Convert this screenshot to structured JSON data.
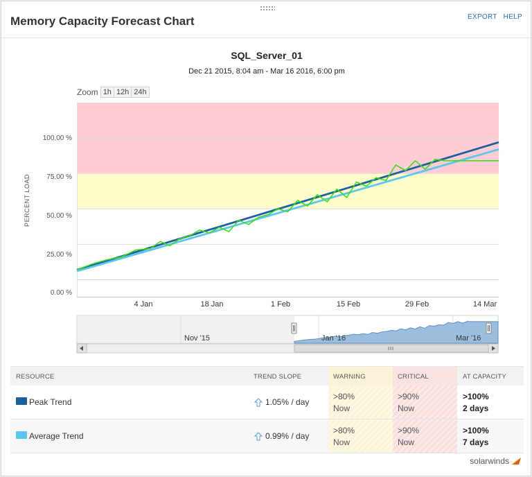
{
  "header": {
    "title": "Memory Capacity Forecast Chart",
    "export_label": "EXPORT",
    "help_label": "HELP"
  },
  "chart": {
    "title": "SQL_Server_01",
    "subtitle": "Dec 21 2015, 8:04 am - Mar 16 2016, 6:00 pm",
    "zoom_label": "Zoom",
    "zoom_options": [
      "1h",
      "12h",
      "24h"
    ],
    "y_axis_title": "PERCENT LOAD",
    "y_ticks": [
      "100.00 %",
      "75.00 %",
      "50.00 %",
      "25.00 %",
      "0.00 %"
    ],
    "x_ticks": [
      "4 Jan",
      "18 Jan",
      "1 Feb",
      "15 Feb",
      "29 Feb",
      "14 Mar"
    ],
    "navigator_labels": [
      "Nov '15",
      "Jan '16",
      "Mar '16"
    ]
  },
  "chart_data": {
    "type": "line",
    "x_range": [
      "2015-12-21",
      "2016-03-16"
    ],
    "ylim": [
      -12,
      125
    ],
    "bands": [
      {
        "from": 80,
        "to": 125,
        "color": "#ffcdd3"
      },
      {
        "from": 75,
        "to": 80,
        "color": "#ffcdd3"
      },
      {
        "from": 50,
        "to": 75,
        "color": "#fffccc"
      }
    ],
    "series": [
      {
        "name": "Peak Trend",
        "color": "#1c5f9e",
        "x": [
          "2015-12-21",
          "2016-03-16"
        ],
        "values": [
          7,
          97
        ]
      },
      {
        "name": "Average Trend",
        "color": "#5bc6ee",
        "x": [
          "2015-12-21",
          "2016-03-16"
        ],
        "values": [
          6,
          92
        ]
      },
      {
        "color": "#3ddc1e",
        "x": [
          "2015-12-21",
          "2015-12-24",
          "2015-12-27",
          "2015-12-30",
          "2016-01-02",
          "2016-01-05",
          "2016-01-07",
          "2016-01-09",
          "2016-01-11",
          "2016-01-13",
          "2016-01-15",
          "2016-01-17",
          "2016-01-19",
          "2016-01-21",
          "2016-01-23",
          "2016-01-25",
          "2016-01-27",
          "2016-01-29",
          "2016-01-31",
          "2016-02-02",
          "2016-02-04",
          "2016-02-06",
          "2016-02-08",
          "2016-02-10",
          "2016-02-12",
          "2016-02-14",
          "2016-02-16",
          "2016-02-18",
          "2016-02-20",
          "2016-02-22",
          "2016-02-24",
          "2016-02-26",
          "2016-02-28",
          "2016-03-01",
          "2016-03-03",
          "2016-03-05",
          "2016-03-16"
        ],
        "values": [
          7,
          11,
          14,
          16,
          21,
          22,
          27,
          24,
          29,
          31,
          35,
          33,
          37,
          34,
          42,
          39,
          44,
          46,
          50,
          48,
          56,
          52,
          60,
          55,
          64,
          58,
          69,
          66,
          72,
          70,
          81,
          77,
          84,
          78,
          85,
          84,
          84
        ]
      }
    ]
  },
  "table": {
    "headers": {
      "resource": "RESOURCE",
      "trend_slope": "TREND SLOPE",
      "warning": "WARNING",
      "critical": "CRITICAL",
      "at_capacity": "AT CAPACITY"
    },
    "rows": [
      {
        "name": "Peak Trend",
        "color": "#1c5f9e",
        "slope": "1.05% / day",
        "warning_1": ">80%",
        "warning_2": "Now",
        "critical_1": ">90%",
        "critical_2": "Now",
        "capacity_1": ">100%",
        "capacity_2": "2 days"
      },
      {
        "name": "Average Trend",
        "color": "#5bc6ee",
        "slope": "0.99% / day",
        "warning_1": ">80%",
        "warning_2": "Now",
        "critical_1": ">90%",
        "critical_2": "Now",
        "capacity_1": ">100%",
        "capacity_2": "7 days"
      }
    ]
  },
  "footer": {
    "brand": "solarwinds"
  }
}
